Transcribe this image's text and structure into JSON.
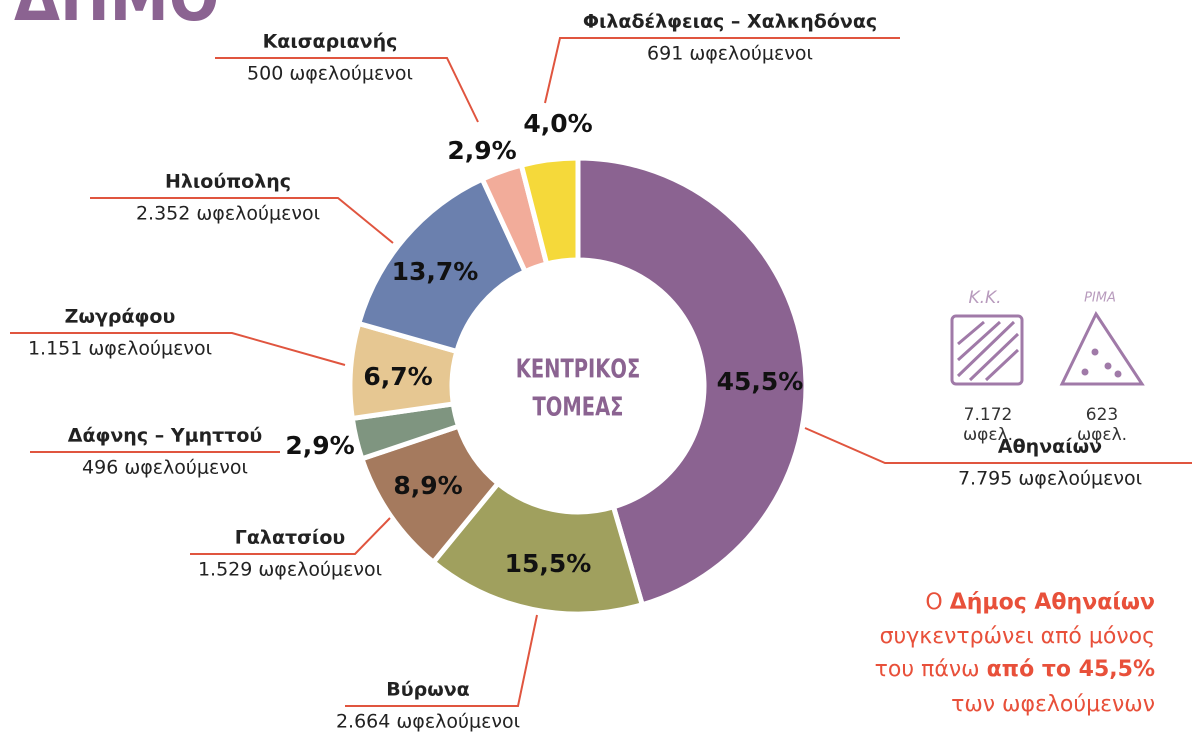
{
  "chart_data": {
    "type": "donut",
    "title": "ΔΗΜΟ",
    "center_label": [
      "ΚΕΝΤΡΙΚΟΣ",
      "ΤΟΜΕΑΣ"
    ],
    "categories": [
      "Αθηναίων",
      "Βύρωνα",
      "Γαλατσίου",
      "Δάφνης – Υμηττού",
      "Ζωγράφου",
      "Ηλιούπολης",
      "Καισαριανής",
      "Φιλαδέλφειας – Χαλκηδόνας"
    ],
    "values": [
      45.5,
      15.5,
      8.9,
      2.9,
      6.7,
      13.7,
      2.9,
      4.0
    ],
    "value_labels": [
      "45,5%",
      "15,5%",
      "8,9%",
      "2,9%",
      "6,7%",
      "13,7%",
      "2,9%",
      "4,0%"
    ],
    "beneficiaries": [
      "7.795 ωφελούμενοι",
      "2.664 ωφελούμενοι",
      "1.529 ωφελούμενοι",
      "496 ωφελούμενοι",
      "1.151 ωφελούμενοι",
      "2.352 ωφελούμενοι",
      "500 ωφελούμενοι",
      "691 ωφελούμενοι"
    ],
    "colors": [
      "#8b6391",
      "#a0a05e",
      "#a57a5e",
      "#7f9580",
      "#e6c792",
      "#6b80ae",
      "#f2ac9a",
      "#f5d93a"
    ],
    "side_stats": [
      {
        "code": "Κ.Κ.",
        "value": "7.172",
        "unit": "ωφελ."
      },
      {
        "code": "ΡΙΜΑ",
        "value": "623",
        "unit": "ωφελ."
      }
    ],
    "callout": [
      "Ο ",
      "Δήμος Αθηναίων",
      "συγκεντρώνει από μόνος",
      "του πάνω ",
      "από το 45,5%",
      "των ωφελούμενων"
    ]
  }
}
